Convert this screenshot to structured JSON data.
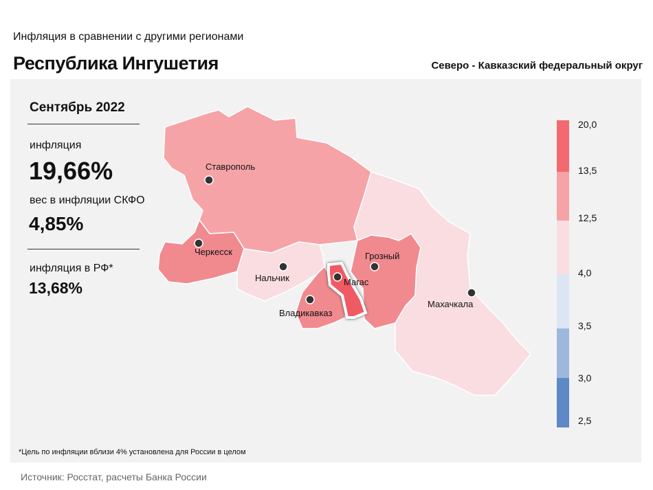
{
  "header": {
    "subtitle": "Инфляция  в сравнении  с другими  регионами",
    "title": "Республика Ингушетия",
    "district": "Северо - Кавказский федеральный округ"
  },
  "stats": {
    "month": "Сентябрь 2022",
    "inflation_label": "инфляция",
    "inflation_value": "19,66%",
    "weight_label": "вес в инфляции  СКФО",
    "weight_value": "4,85%",
    "rf_label": "инфляция  в РФ*",
    "rf_value": "13,68%"
  },
  "map": {
    "regions": [
      {
        "name": "Ставропольский край",
        "color": "#f5a3a7"
      },
      {
        "name": "Карачаево-Черкесская Республика",
        "color": "#f08a8f"
      },
      {
        "name": "Кабардино-Балкарская Республика",
        "color": "#f9dde0"
      },
      {
        "name": "Республика Северная Осетия-Алания",
        "color": "#f08a8f"
      },
      {
        "name": "Республика Ингушетия",
        "color": "#f05a64",
        "highlighted": true
      },
      {
        "name": "Чеченская Республика",
        "color": "#f08a8f"
      },
      {
        "name": "Республика Дагестан",
        "color": "#f9dde0"
      }
    ],
    "cities": {
      "stavropol": "Ставрополь",
      "cherkessk": "Черкесск",
      "nalchik": "Нальчик",
      "vladikavkaz": "Владикавказ",
      "magas": "Магас",
      "grozny": "Грозный",
      "makhachkala": "Махачкала"
    }
  },
  "legend": {
    "ticks": [
      "20,0",
      "13,5",
      "12,5",
      "4,0",
      "3,5",
      "3,0",
      "2,5"
    ],
    "colors": [
      "#f26a6f",
      "#f5a3a7",
      "#f9dde0",
      "#dbe5f4",
      "#9db8dc",
      "#5d8ac7"
    ]
  },
  "footnote": "*Цель по инфляции вблизи 4% установлена для России в целом",
  "source": "Источник: Росстат, расчеты Банка России"
}
